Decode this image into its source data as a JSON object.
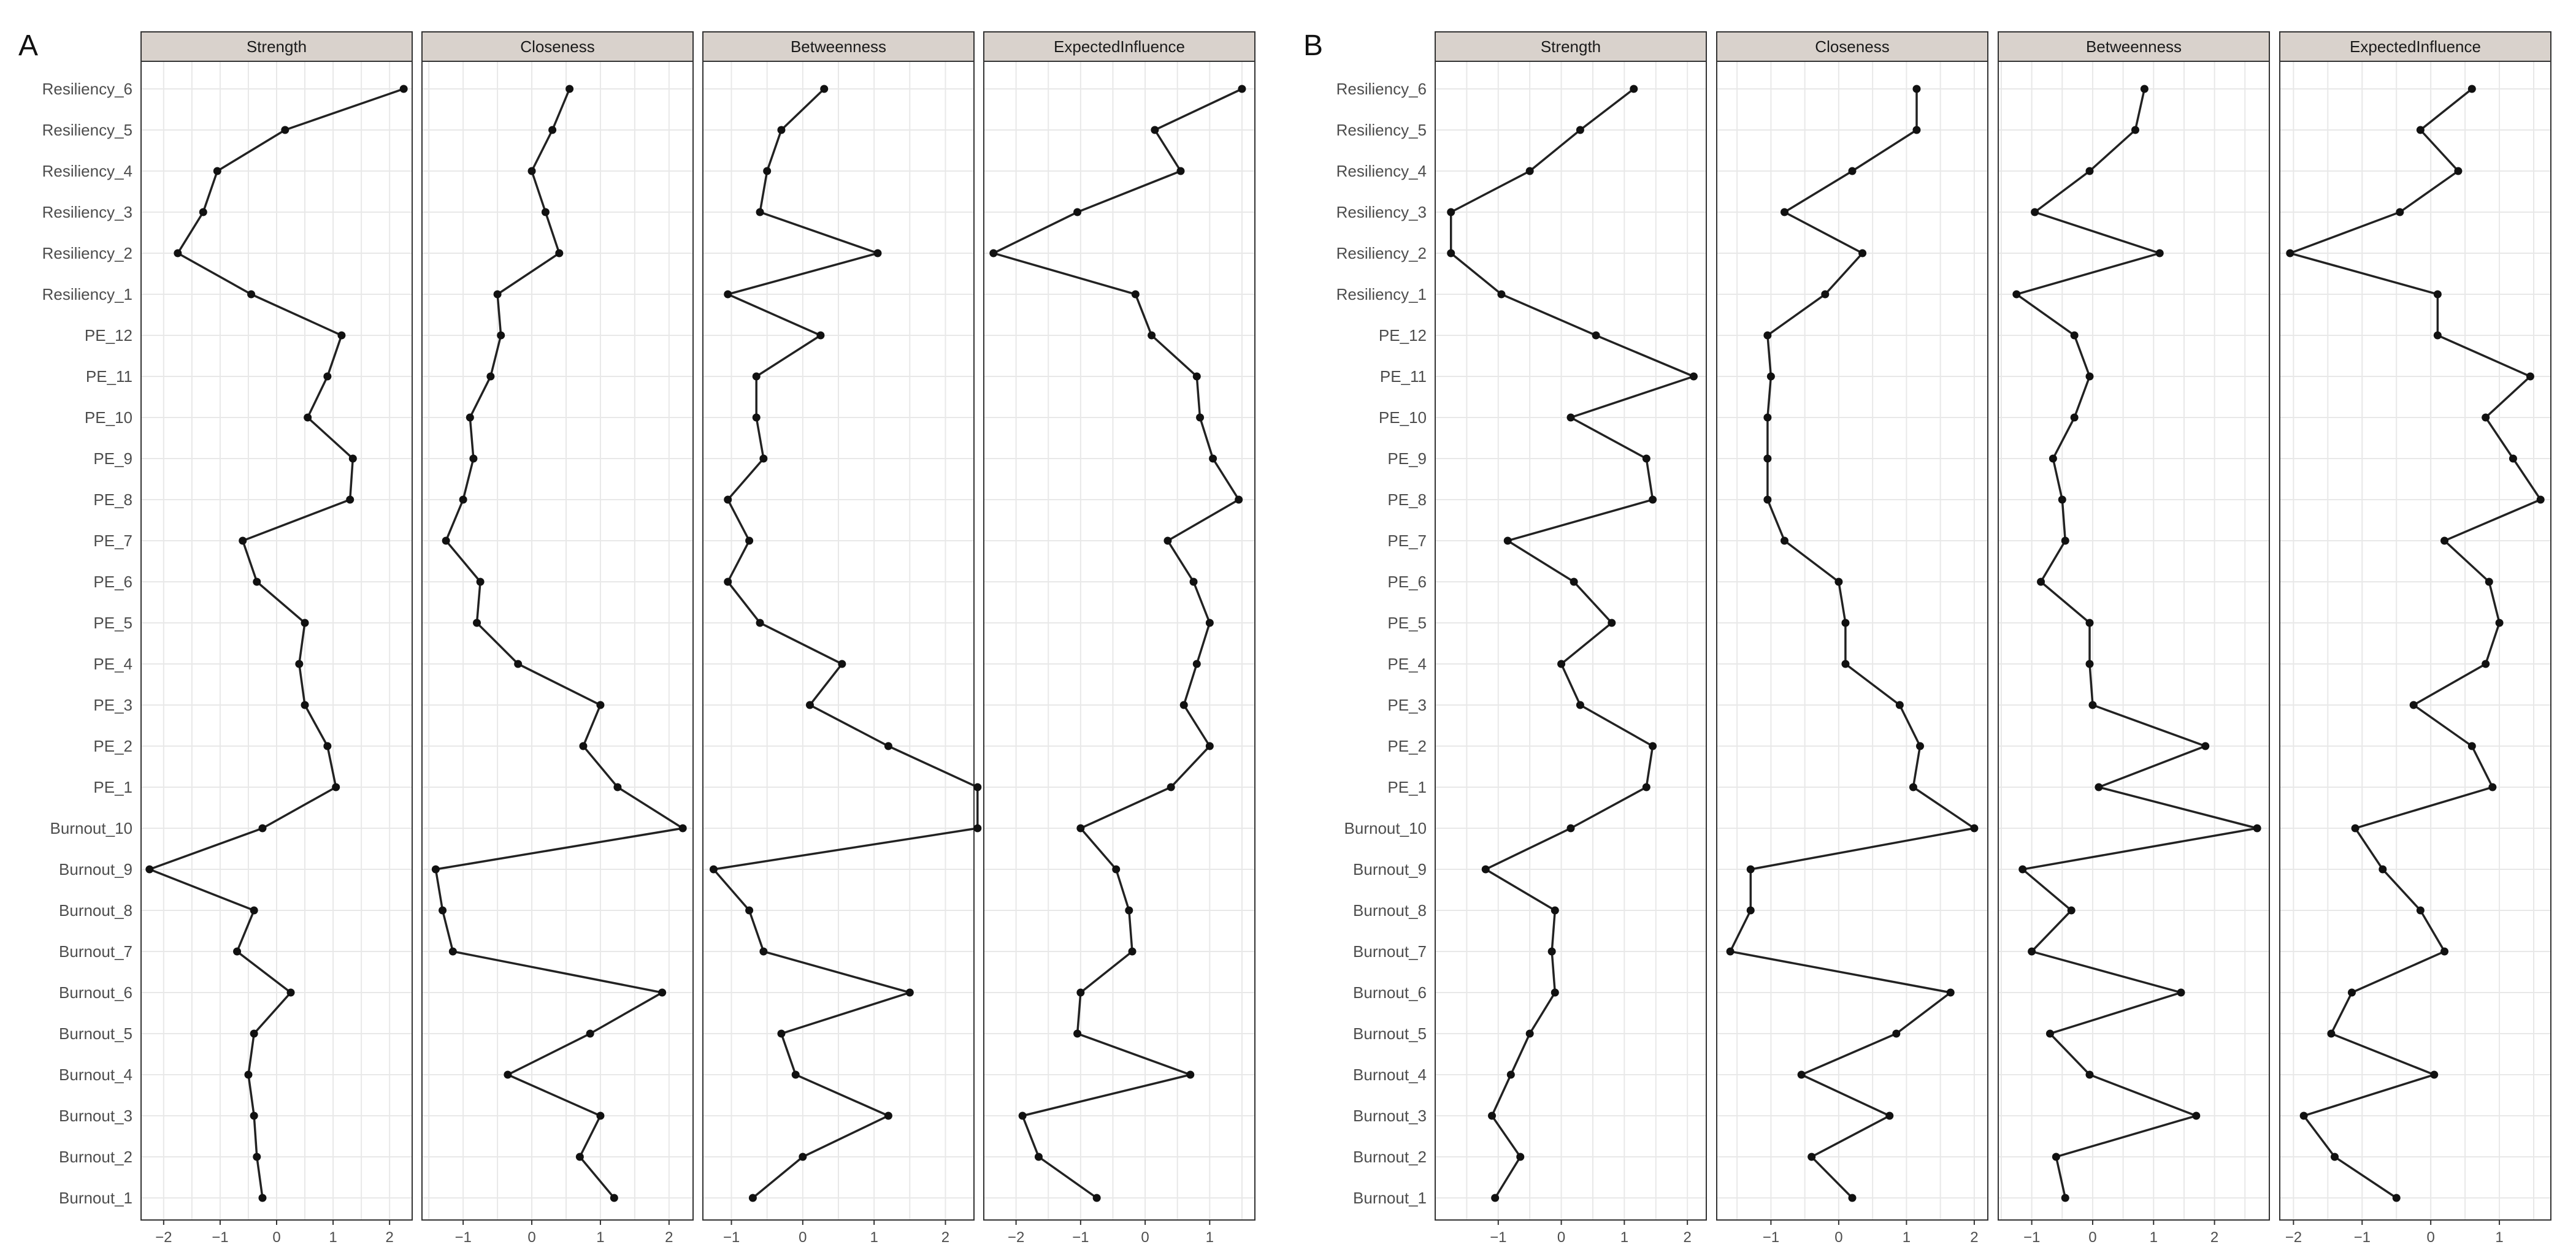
{
  "chart_data": [
    {
      "label": "A",
      "type": "line",
      "nodes": [
        "Burnout_1",
        "Burnout_2",
        "Burnout_3",
        "Burnout_4",
        "Burnout_5",
        "Burnout_6",
        "Burnout_7",
        "Burnout_8",
        "Burnout_9",
        "Burnout_10",
        "PE_1",
        "PE_2",
        "PE_3",
        "PE_4",
        "PE_5",
        "PE_6",
        "PE_7",
        "PE_8",
        "PE_9",
        "PE_10",
        "PE_11",
        "PE_12",
        "Resiliency_1",
        "Resiliency_2",
        "Resiliency_3",
        "Resiliency_4",
        "Resiliency_5",
        "Resiliency_6"
      ],
      "facets": [
        {
          "title": "Strength",
          "xlim": [
            -2.4,
            2.4
          ],
          "xticks": [
            -2,
            -1,
            0,
            1,
            2
          ],
          "xtick_labels": [
            "−2",
            "−1",
            "0",
            "1",
            "2"
          ],
          "values": [
            -0.25,
            -0.35,
            -0.4,
            -0.5,
            -0.4,
            0.25,
            -0.7,
            -0.4,
            -2.25,
            -0.25,
            1.05,
            0.9,
            0.5,
            0.4,
            0.5,
            -0.35,
            -0.6,
            1.3,
            1.35,
            0.55,
            0.9,
            1.15,
            -0.45,
            -1.75,
            -1.3,
            -1.05,
            0.15,
            2.25
          ]
        },
        {
          "title": "Closeness",
          "xlim": [
            -1.6,
            2.35
          ],
          "xticks": [
            -1,
            0,
            1,
            2
          ],
          "xtick_labels": [
            "−1",
            "0",
            "1",
            "2"
          ],
          "values": [
            1.2,
            0.7,
            1.0,
            -0.35,
            0.85,
            1.9,
            -1.15,
            -1.3,
            -1.4,
            2.2,
            1.25,
            0.75,
            1.0,
            -0.2,
            -0.8,
            -0.75,
            -1.25,
            -1.0,
            -0.85,
            -0.9,
            -0.6,
            -0.45,
            -0.5,
            0.4,
            0.2,
            0.0,
            0.3,
            0.55
          ]
        },
        {
          "title": "Betweenness",
          "xlim": [
            -1.4,
            2.4
          ],
          "xticks": [
            -1,
            0,
            1,
            2
          ],
          "xtick_labels": [
            "−1",
            "0",
            "1",
            "2"
          ],
          "values": [
            -0.7,
            0.0,
            1.2,
            -0.1,
            -0.3,
            1.5,
            -0.55,
            -0.75,
            -1.25,
            2.45,
            2.45,
            1.2,
            0.1,
            0.55,
            -0.6,
            -1.05,
            -0.75,
            -1.05,
            -0.55,
            -0.65,
            -0.65,
            0.25,
            -1.05,
            1.05,
            -0.6,
            -0.5,
            -0.3,
            0.3
          ]
        },
        {
          "title": "ExpectedInfluence",
          "xlim": [
            -2.5,
            1.7
          ],
          "xticks": [
            -2,
            -1,
            0,
            1
          ],
          "xtick_labels": [
            "−2",
            "−1",
            "0",
            "1"
          ],
          "values": [
            -0.75,
            -1.65,
            -1.9,
            0.7,
            -1.05,
            -1.0,
            -0.2,
            -0.25,
            -0.45,
            -1.0,
            0.4,
            1.0,
            0.6,
            0.8,
            1.0,
            0.75,
            0.35,
            1.45,
            1.05,
            0.85,
            0.8,
            0.1,
            -0.15,
            -2.35,
            -1.05,
            0.55,
            0.15,
            1.5
          ]
        }
      ]
    },
    {
      "label": "B",
      "type": "line",
      "nodes": [
        "Burnout_1",
        "Burnout_2",
        "Burnout_3",
        "Burnout_4",
        "Burnout_5",
        "Burnout_6",
        "Burnout_7",
        "Burnout_8",
        "Burnout_9",
        "Burnout_10",
        "PE_1",
        "PE_2",
        "PE_3",
        "PE_4",
        "PE_5",
        "PE_6",
        "PE_7",
        "PE_8",
        "PE_9",
        "PE_10",
        "PE_11",
        "PE_12",
        "Resiliency_1",
        "Resiliency_2",
        "Resiliency_3",
        "Resiliency_4",
        "Resiliency_5",
        "Resiliency_6"
      ],
      "facets": [
        {
          "title": "Strength",
          "xlim": [
            -2.0,
            2.3
          ],
          "xticks": [
            -1,
            0,
            1,
            2
          ],
          "xtick_labels": [
            "−1",
            "0",
            "1",
            "2"
          ],
          "values": [
            -1.05,
            -0.65,
            -1.1,
            -0.8,
            -0.5,
            -0.1,
            -0.15,
            -0.1,
            -1.2,
            0.15,
            1.35,
            1.45,
            0.3,
            0.0,
            0.8,
            0.2,
            -0.85,
            1.45,
            1.35,
            0.15,
            2.1,
            0.55,
            -0.95,
            -1.75,
            -1.75,
            -0.5,
            0.3,
            1.15
          ]
        },
        {
          "title": "Closeness",
          "xlim": [
            -1.8,
            2.2
          ],
          "xticks": [
            -1,
            0,
            1,
            2
          ],
          "xtick_labels": [
            "−1",
            "0",
            "1",
            "2"
          ],
          "values": [
            0.2,
            -0.4,
            0.75,
            -0.55,
            0.85,
            1.65,
            -1.6,
            -1.3,
            -1.3,
            2.0,
            1.1,
            1.2,
            0.9,
            0.1,
            0.1,
            0.0,
            -0.8,
            -1.05,
            -1.05,
            -1.05,
            -1.0,
            -1.05,
            -0.2,
            0.35,
            -0.8,
            0.2,
            1.15,
            1.15
          ]
        },
        {
          "title": "Betweenness",
          "xlim": [
            -1.55,
            2.9
          ],
          "xticks": [
            -1,
            0,
            1,
            2
          ],
          "xtick_labels": [
            "−1",
            "0",
            "1",
            "2"
          ],
          "values": [
            -0.45,
            -0.6,
            1.7,
            -0.05,
            -0.7,
            1.45,
            -1.0,
            -0.35,
            -1.15,
            2.7,
            0.1,
            1.85,
            0.0,
            -0.05,
            -0.05,
            -0.85,
            -0.45,
            -0.5,
            -0.65,
            -0.3,
            -0.05,
            -0.3,
            -1.25,
            1.1,
            -0.95,
            -0.05,
            0.7,
            0.85
          ]
        },
        {
          "title": "ExpectedInfluence",
          "xlim": [
            -2.2,
            1.75
          ],
          "xticks": [
            -2,
            -1,
            0,
            1
          ],
          "xtick_labels": [
            "−2",
            "−1",
            "0",
            "1"
          ],
          "values": [
            -0.5,
            -1.4,
            -1.85,
            0.05,
            -1.45,
            -1.15,
            0.2,
            -0.15,
            -0.7,
            -1.1,
            0.9,
            0.6,
            -0.25,
            0.8,
            1.0,
            0.85,
            0.2,
            1.6,
            1.2,
            0.8,
            1.45,
            0.1,
            0.1,
            -2.05,
            -0.45,
            0.4,
            -0.15,
            0.6
          ]
        }
      ]
    }
  ]
}
